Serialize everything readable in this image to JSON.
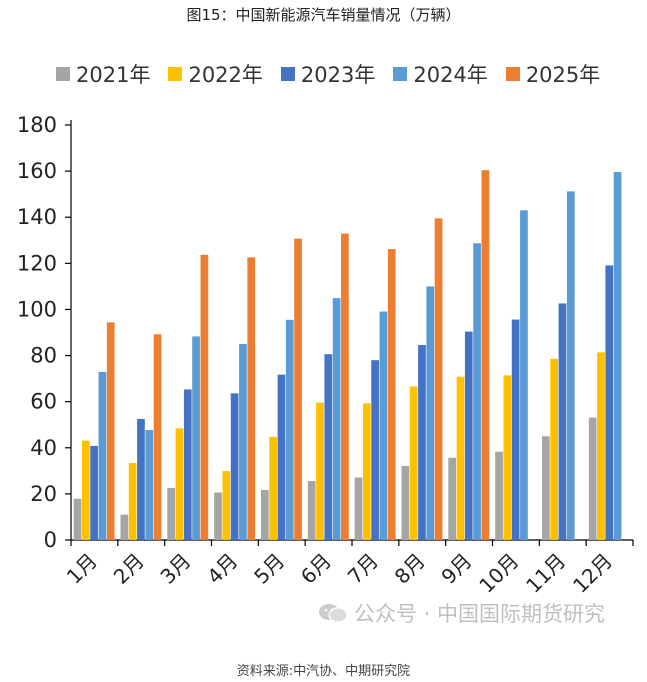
{
  "title": "图15：中国新能源汽车销量情况（万辆）",
  "source": "资料来源:中汽协、中期研究院",
  "watermark": "公众号 · 中国国际期货研究",
  "chart_data": {
    "type": "bar",
    "title": "图15：中国新能源汽车销量情况（万辆）",
    "xlabel": "",
    "ylabel": "",
    "ylim": [
      0,
      180
    ],
    "yticks": [
      0,
      20,
      40,
      60,
      80,
      100,
      120,
      140,
      160,
      180
    ],
    "categories": [
      "1月",
      "2月",
      "3月",
      "4月",
      "5月",
      "6月",
      "7月",
      "8月",
      "9月",
      "10月",
      "11月",
      "12月"
    ],
    "legend_position": "top",
    "grid": false,
    "series": [
      {
        "name": "2021年",
        "color": "#A5A5A5",
        "values": [
          17.9,
          11.0,
          22.6,
          20.6,
          21.7,
          25.6,
          27.1,
          32.1,
          35.7,
          38.3,
          45.0,
          53.1
        ]
      },
      {
        "name": "2022年",
        "color": "#FFC000",
        "values": [
          43.1,
          33.4,
          48.4,
          29.9,
          44.7,
          59.6,
          59.3,
          66.6,
          70.8,
          71.4,
          78.6,
          81.4
        ]
      },
      {
        "name": "2023年",
        "color": "#4472C4",
        "values": [
          40.8,
          52.5,
          65.3,
          63.6,
          71.7,
          80.6,
          78.0,
          84.6,
          90.4,
          95.6,
          102.6,
          119.1
        ]
      },
      {
        "name": "2024年",
        "color": "#5B9BD5",
        "values": [
          72.9,
          47.7,
          88.3,
          85.0,
          95.5,
          104.9,
          99.1,
          110.0,
          128.7,
          143.0,
          151.2,
          159.6
        ]
      },
      {
        "name": "2025年",
        "color": "#ED7D31",
        "values": [
          94.4,
          89.2,
          123.7,
          122.6,
          130.7,
          132.9,
          126.2,
          139.5,
          160.4,
          null,
          null,
          null
        ]
      }
    ]
  }
}
